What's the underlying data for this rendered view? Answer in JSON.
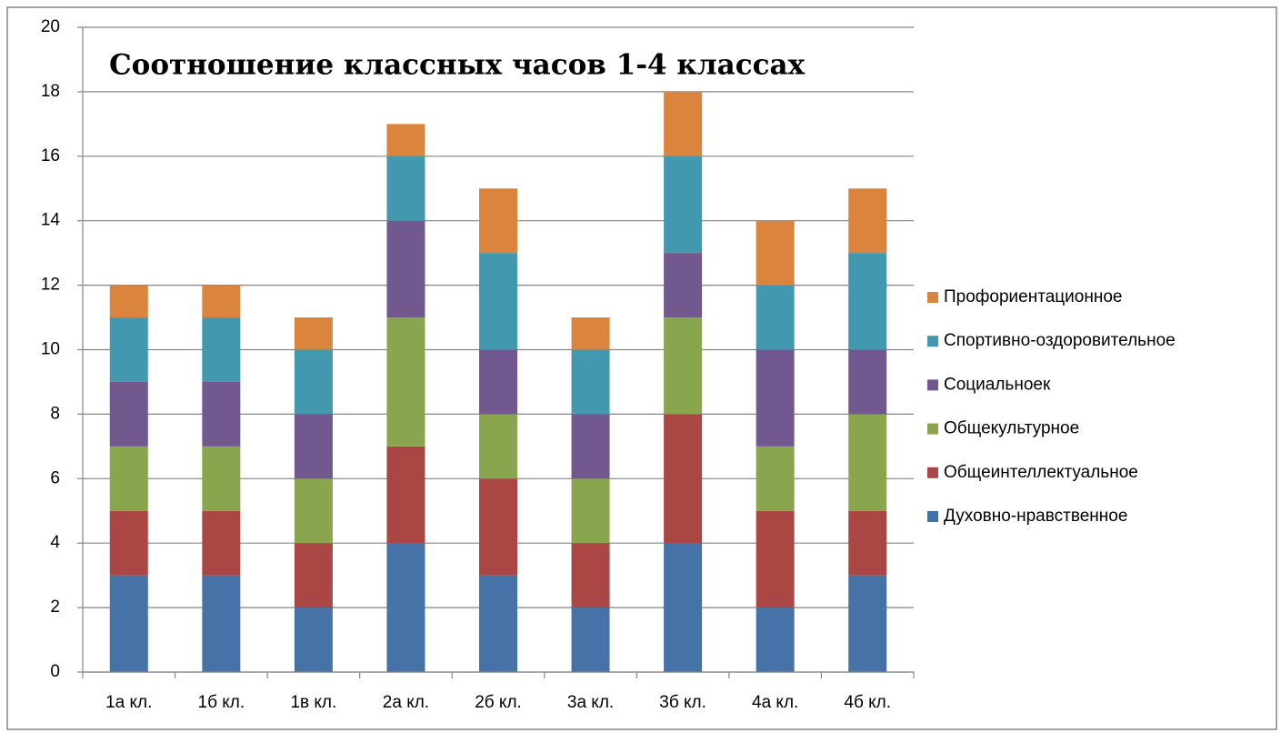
{
  "chart_data": {
    "type": "stacked_bar",
    "title": "Соотношение классных часов 1-4 классах",
    "categories": [
      "1а кл.",
      "1б кл.",
      "1в кл.",
      "2а кл.",
      "2б кл.",
      "3а кл.",
      "3б кл.",
      "4а кл.",
      "4б кл."
    ],
    "series": [
      {
        "name": "Духовно-нравственное",
        "color": "#4572a7",
        "values": [
          3,
          3,
          2,
          4,
          3,
          2,
          4,
          2,
          3
        ]
      },
      {
        "name": "Общеинтеллектуальное",
        "color": "#aa4643",
        "values": [
          2,
          2,
          2,
          3,
          3,
          2,
          4,
          3,
          2
        ]
      },
      {
        "name": "Общекультурное",
        "color": "#89a54e",
        "values": [
          2,
          2,
          2,
          4,
          2,
          2,
          3,
          2,
          3
        ]
      },
      {
        "name": "Социальноек",
        "color": "#71588f",
        "values": [
          2,
          2,
          2,
          3,
          2,
          2,
          2,
          3,
          2
        ]
      },
      {
        "name": "Спортивно-оздоровительное",
        "color": "#4198af",
        "values": [
          2,
          2,
          2,
          2,
          3,
          2,
          3,
          2,
          3
        ]
      },
      {
        "name": "Профориентационное",
        "color": "#db843d",
        "values": [
          1,
          1,
          1,
          1,
          2,
          1,
          2,
          2,
          2
        ]
      }
    ],
    "ylim": [
      0,
      20
    ],
    "yticks": [
      0,
      2,
      4,
      6,
      8,
      10,
      12,
      14,
      16,
      18,
      20
    ],
    "grid": true,
    "legend": "right"
  }
}
